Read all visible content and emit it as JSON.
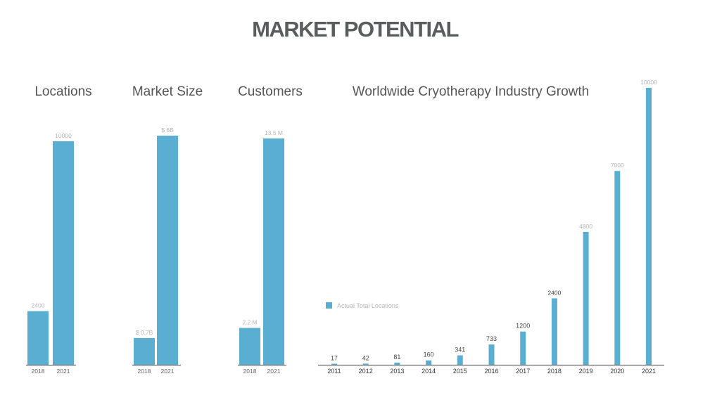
{
  "page": {
    "title": "MARKET POTENTIAL"
  },
  "colors": {
    "bar": "#5aaed1",
    "axis": "#6a6a6a",
    "value_label": "#b5b5b5",
    "value_label_dark": "#444444",
    "title": "#555555"
  },
  "chart_data": [
    {
      "type": "bar",
      "title": "Locations",
      "categories": [
        "2018",
        "2021"
      ],
      "values": [
        2400,
        10000
      ],
      "data_labels": [
        "2400",
        "10000"
      ],
      "xlabel": "",
      "ylabel": "",
      "grid": false
    },
    {
      "type": "bar",
      "title": "Market Size",
      "categories": [
        "2018",
        "2021"
      ],
      "values": [
        0.7,
        6
      ],
      "data_labels": [
        "$ 0.7B",
        "$ 6B"
      ],
      "xlabel": "",
      "ylabel": "",
      "grid": false
    },
    {
      "type": "bar",
      "title": "Customers",
      "categories": [
        "2018",
        "2021"
      ],
      "values": [
        2.2,
        13.5
      ],
      "data_labels": [
        "2.2 M",
        "13.5 M"
      ],
      "xlabel": "",
      "ylabel": "",
      "grid": false
    },
    {
      "type": "bar",
      "title": "Worldwide Cryotherapy Industry Growth",
      "categories": [
        "2011",
        "2012",
        "2013",
        "2014",
        "2015",
        "2016",
        "2017",
        "2018",
        "2019",
        "2020",
        "2021"
      ],
      "series": [
        {
          "name": "Actual Total Locations",
          "values": [
            17,
            42,
            81,
            160,
            341,
            733,
            1200,
            2400,
            4800,
            7000,
            10000
          ]
        }
      ],
      "data_labels": [
        "17",
        "42",
        "81",
        "160",
        "341",
        "733",
        "1200",
        "2400",
        "4800",
        "7000",
        "10000"
      ],
      "legend": "left",
      "xlabel": "",
      "ylabel": "",
      "grid": false
    }
  ]
}
